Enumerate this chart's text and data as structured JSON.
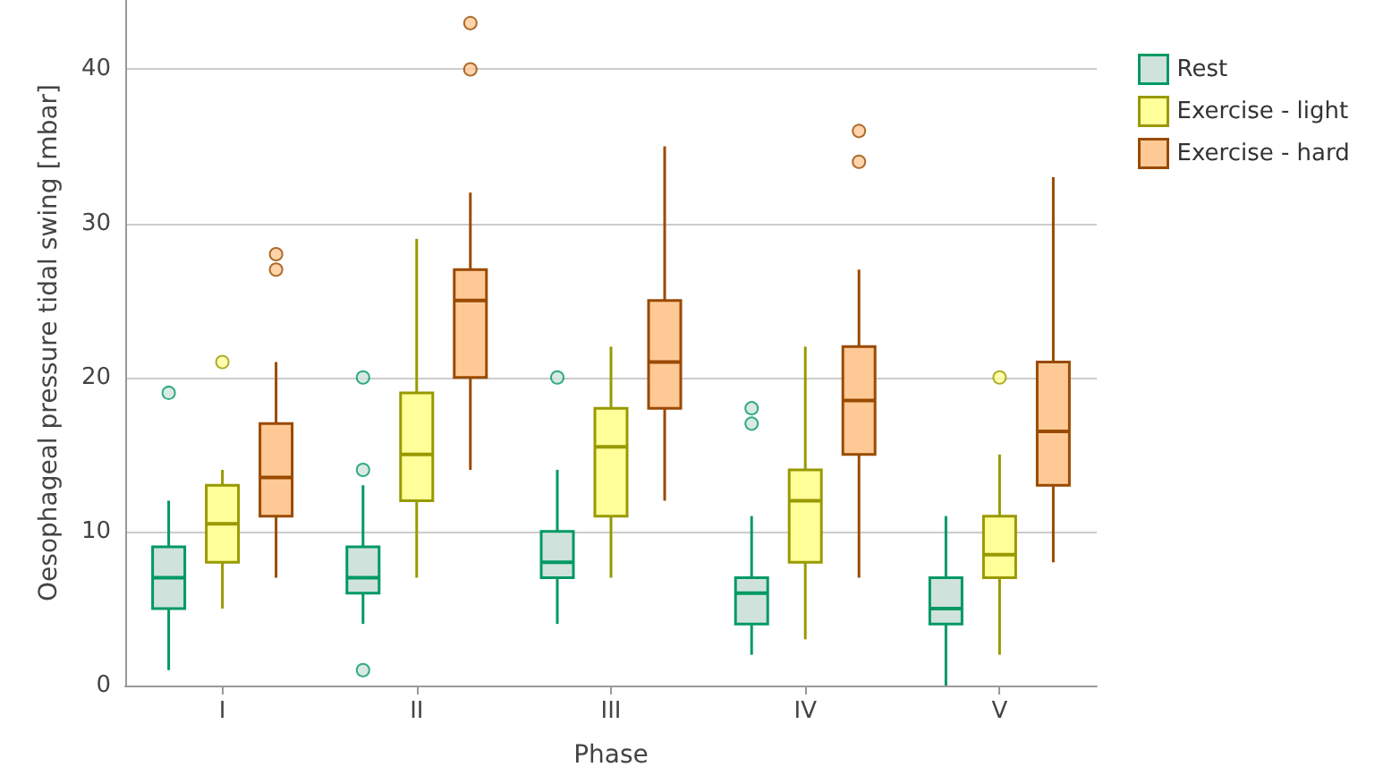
{
  "chart_data": {
    "type": "box",
    "xlabel": "Phase",
    "ylabel": "Oesophageal pressure tidal swing [mbar]",
    "categories": [
      "I",
      "II",
      "III",
      "IV",
      "V"
    ],
    "ylim": [
      0,
      44.5
    ],
    "yticks": [
      0,
      10,
      20,
      30,
      40
    ],
    "grid": "y",
    "legend": "top right",
    "series": [
      {
        "name": "Rest",
        "color": "#cfe3dc",
        "boxes": [
          {
            "low": 1,
            "q1": 5,
            "median": 7,
            "q3": 9,
            "high": 12,
            "outliers": [
              19
            ]
          },
          {
            "low": 4,
            "q1": 6,
            "median": 7,
            "q3": 9,
            "high": 13,
            "outliers": [
              14,
              1,
              20
            ]
          },
          {
            "low": 4,
            "q1": 7,
            "median": 8,
            "q3": 10,
            "high": 14,
            "outliers": [
              20
            ]
          },
          {
            "low": 2,
            "q1": 4,
            "median": 6,
            "q3": 7,
            "high": 11,
            "outliers": [
              17,
              18
            ]
          },
          {
            "low": 0,
            "q1": 4,
            "median": 5,
            "q3": 7,
            "high": 11
          }
        ]
      },
      {
        "name": "Exercise - light",
        "color": "#ffff99",
        "boxes": [
          {
            "low": 5,
            "q1": 8,
            "median": 10.5,
            "q3": 13,
            "high": 14,
            "outliers": [
              21
            ]
          },
          {
            "low": 7,
            "q1": 12,
            "median": 15,
            "q3": 19,
            "high": 29
          },
          {
            "low": 7,
            "q1": 11,
            "median": 15.5,
            "q3": 18,
            "high": 22
          },
          {
            "low": 3,
            "q1": 8,
            "median": 12,
            "q3": 14,
            "high": 22
          },
          {
            "low": 2,
            "q1": 7,
            "median": 8.5,
            "q3": 11,
            "high": 15,
            "outliers": [
              20
            ]
          }
        ]
      },
      {
        "name": "Exercise - hard",
        "color": "#ffc996",
        "boxes": [
          {
            "low": 7,
            "q1": 11,
            "median": 13.5,
            "q3": 17,
            "high": 21,
            "outliers": [
              27,
              28
            ]
          },
          {
            "low": 14,
            "q1": 20,
            "median": 25,
            "q3": 27,
            "high": 32,
            "outliers": [
              40,
              43
            ]
          },
          {
            "low": 12,
            "q1": 18,
            "median": 21,
            "q3": 25,
            "high": 35
          },
          {
            "low": 7,
            "q1": 15,
            "median": 18.5,
            "q3": 22,
            "high": 27,
            "outliers": [
              34,
              36
            ]
          },
          {
            "low": 8,
            "q1": 13,
            "median": 16.5,
            "q3": 21,
            "high": 33
          }
        ]
      }
    ]
  }
}
